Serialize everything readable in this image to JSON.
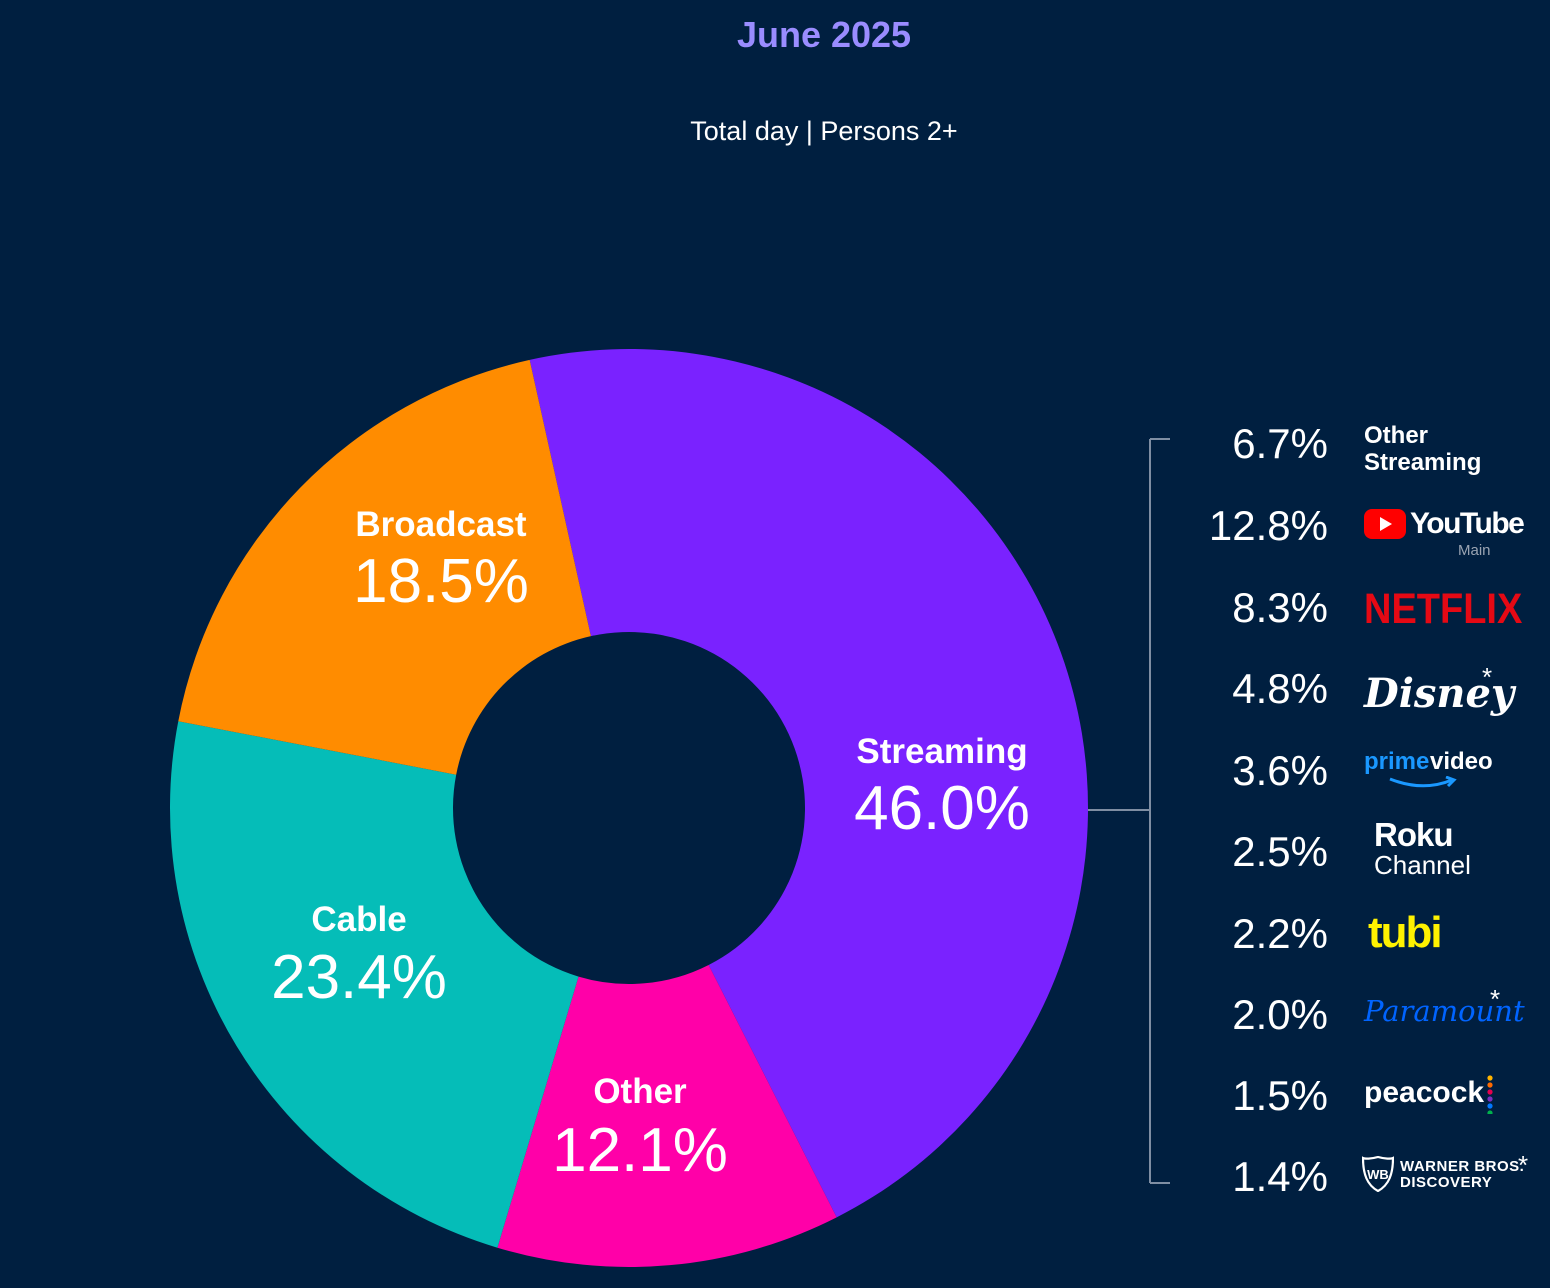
{
  "header": {
    "title": "June 2025",
    "subtitle": "Total day | Persons 2+"
  },
  "chart_data": {
    "type": "pie",
    "variant": "donut",
    "title": "June 2025",
    "subtitle": "Total day | Persons 2+",
    "slices": [
      {
        "name": "Streaming",
        "value": 46.0,
        "label": "46.0%",
        "color": "#7a22ff"
      },
      {
        "name": "Other",
        "value": 12.1,
        "label": "12.1%",
        "color": "#ff00a8"
      },
      {
        "name": "Cable",
        "value": 23.4,
        "label": "23.4%",
        "color": "#05bdb8"
      },
      {
        "name": "Broadcast",
        "value": 18.5,
        "label": "18.5%",
        "color": "#ff8c00"
      }
    ],
    "streaming_breakdown": [
      {
        "name": "Other Streaming",
        "value": 6.7,
        "label": "6.7%",
        "logo": "other-streaming-text"
      },
      {
        "name": "YouTube",
        "sub": "Main",
        "value": 12.8,
        "label": "12.8%",
        "logo": "youtube-logo"
      },
      {
        "name": "NETFLIX",
        "value": 8.3,
        "label": "8.3%",
        "logo": "netflix-logo"
      },
      {
        "name": "Disney",
        "value": 4.8,
        "label": "4.8%",
        "logo": "disney-logo",
        "asterisk": true
      },
      {
        "name": "prime video",
        "value": 3.6,
        "label": "3.6%",
        "logo": "prime-video-logo"
      },
      {
        "name": "Roku Channel",
        "value": 2.5,
        "label": "2.5%",
        "logo": "roku-channel-logo"
      },
      {
        "name": "tubi",
        "value": 2.2,
        "label": "2.2%",
        "logo": "tubi-logo"
      },
      {
        "name": "Paramount",
        "value": 2.0,
        "label": "2.0%",
        "logo": "paramount-logo",
        "asterisk": true
      },
      {
        "name": "peacock",
        "value": 1.5,
        "label": "1.5%",
        "logo": "peacock-logo"
      },
      {
        "name": "WARNER BROS. DISCOVERY",
        "value": 1.4,
        "label": "1.4%",
        "logo": "warner-bros-discovery-logo",
        "asterisk": true
      }
    ]
  },
  "logos": {
    "other_streaming_line1": "Other",
    "other_streaming_line2": "Streaming",
    "youtube": "YouTube",
    "youtube_sub": "Main",
    "netflix": "NETFLIX",
    "disney": "Disney",
    "prime_video_1": "prime",
    "prime_video_2": "video",
    "roku_line1": "Roku",
    "roku_line2": "Channel",
    "tubi": "tubi",
    "paramount": "Paramount",
    "peacock": "peacock",
    "wbd_line1": "WARNER BROS.",
    "wbd_line2": "DISCOVERY",
    "asterisk": "*"
  },
  "colors": {
    "background": "#001f40",
    "title": "#9a8cff",
    "netflix": "#e50914",
    "youtube": "#ff0000",
    "prime": "#1a98ff",
    "tubi": "#fff200",
    "paramount": "#0064ff"
  }
}
